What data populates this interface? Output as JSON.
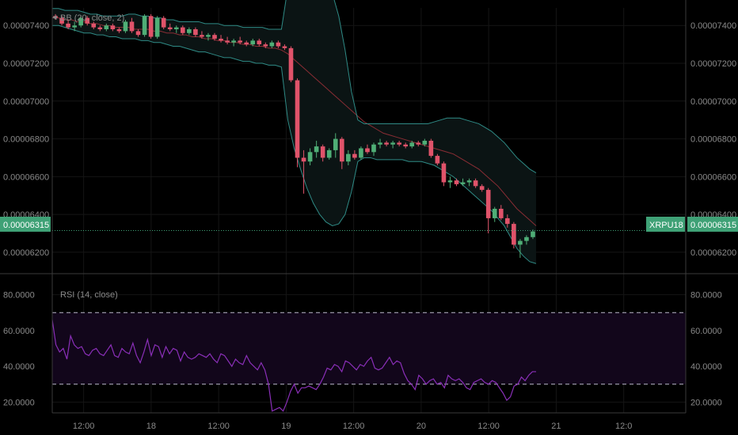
{
  "colors": {
    "background": "#000000",
    "grid": "#151515",
    "axis_line": "#3a3a3a",
    "label": "#8a8a8a",
    "up_candle": "#4fae76",
    "down_candle": "#e0536a",
    "bb_band": "#2f8b86",
    "bb_fill": "#0b1414",
    "bb_basis": "#8a2d34",
    "rsi_line": "#8a2fb8",
    "rsi_band_fill": "#12061b",
    "rsi_level": "#b9b9c9",
    "price_tag": "#3fa176",
    "price_line": "#3fa176"
  },
  "price_panel": {
    "indicator_label": "BB (20, close, 2)",
    "left_ticks": [
      "0.00007400",
      "0.00007200",
      "0.00007000",
      "0.00006800",
      "0.00006600",
      "0.00006400",
      "0.00006200"
    ],
    "right_ticks": [
      "0.00007400",
      "0.00007200",
      "0.00007000",
      "0.00006800",
      "0.00006600",
      "0.00006400",
      "0.00006200"
    ],
    "last_price_left": "0.00006315",
    "last_price_right": "0.00006315",
    "symbol_tag": "XRPU18"
  },
  "rsi_panel": {
    "indicator_label": "RSI (14, close)",
    "left_ticks": [
      "80.0000",
      "60.0000",
      "40.0000",
      "20.0000"
    ],
    "right_ticks": [
      "80.0000",
      "60.0000",
      "40.0000",
      "20.0000"
    ]
  },
  "time_axis": {
    "labels": [
      "12:00",
      "18",
      "12:00",
      "19",
      "12:00",
      "20",
      "12:00",
      "21",
      "12:0"
    ]
  },
  "chart_data": [
    {
      "type": "candlestick",
      "title": "BB (20, close, 2)",
      "ylim": [
        6.095e-05,
        7.493e-05
      ],
      "x_range_hours": [
        0,
        86
      ],
      "time_labels": {
        "6": "12:00",
        "18": "18",
        "30": "12:00",
        "42": "19",
        "54": "12:00",
        "66": "20",
        "78": "12:00",
        "90": "21",
        "102": "12:0"
      },
      "last_price": 6.315e-05,
      "candles": [
        [
          7.45e-05,
          7.46e-05,
          7.43e-05,
          7.44e-05
        ],
        [
          7.44e-05,
          7.45e-05,
          7.4e-05,
          7.41e-05
        ],
        [
          7.41e-05,
          7.43e-05,
          7.38e-05,
          7.39e-05
        ],
        [
          7.39e-05,
          7.42e-05,
          7.37e-05,
          7.4e-05
        ],
        [
          7.4e-05,
          7.45e-05,
          7.39e-05,
          7.44e-05
        ],
        [
          7.44e-05,
          7.45e-05,
          7.4e-05,
          7.41e-05
        ],
        [
          7.41e-05,
          7.42e-05,
          7.38e-05,
          7.39e-05
        ],
        [
          7.39e-05,
          7.4e-05,
          7.37e-05,
          7.38e-05
        ],
        [
          7.38e-05,
          7.41e-05,
          7.37e-05,
          7.4e-05
        ],
        [
          7.4e-05,
          7.41e-05,
          7.37e-05,
          7.38e-05
        ],
        [
          7.38e-05,
          7.39e-05,
          7.36e-05,
          7.37e-05
        ],
        [
          7.37e-05,
          7.43e-05,
          7.36e-05,
          7.42e-05
        ],
        [
          7.42e-05,
          7.44e-05,
          7.36e-05,
          7.37e-05
        ],
        [
          7.37e-05,
          7.38e-05,
          7.34e-05,
          7.35e-05
        ],
        [
          7.35e-05,
          7.46e-05,
          7.34e-05,
          7.45e-05
        ],
        [
          7.45e-05,
          7.46e-05,
          7.33e-05,
          7.34e-05
        ],
        [
          7.34e-05,
          7.45e-05,
          7.33e-05,
          7.44e-05
        ],
        [
          7.44e-05,
          7.45e-05,
          7.38e-05,
          7.39e-05
        ],
        [
          7.39e-05,
          7.41e-05,
          7.37e-05,
          7.38e-05
        ],
        [
          7.38e-05,
          7.4e-05,
          7.36e-05,
          7.39e-05
        ],
        [
          7.39e-05,
          7.4e-05,
          7.35e-05,
          7.36e-05
        ],
        [
          7.36e-05,
          7.39e-05,
          7.35e-05,
          7.38e-05
        ],
        [
          7.38e-05,
          7.39e-05,
          7.34e-05,
          7.35e-05
        ],
        [
          7.35e-05,
          7.37e-05,
          7.33e-05,
          7.34e-05
        ],
        [
          7.34e-05,
          7.36e-05,
          7.32e-05,
          7.35e-05
        ],
        [
          7.35e-05,
          7.36e-05,
          7.32e-05,
          7.33e-05
        ],
        [
          7.33e-05,
          7.35e-05,
          7.31e-05,
          7.32e-05
        ],
        [
          7.32e-05,
          7.34e-05,
          7.3e-05,
          7.31e-05
        ],
        [
          7.31e-05,
          7.33e-05,
          7.29e-05,
          7.32e-05
        ],
        [
          7.32e-05,
          7.34e-05,
          7.3e-05,
          7.31e-05
        ],
        [
          7.31e-05,
          7.32e-05,
          7.29e-05,
          7.3e-05
        ],
        [
          7.3e-05,
          7.33e-05,
          7.29e-05,
          7.32e-05
        ],
        [
          7.32e-05,
          7.33e-05,
          7.29e-05,
          7.3e-05
        ],
        [
          7.3e-05,
          7.31e-05,
          7.28e-05,
          7.29e-05
        ],
        [
          7.29e-05,
          7.32e-05,
          7.28e-05,
          7.31e-05
        ],
        [
          7.31e-05,
          7.32e-05,
          7.28e-05,
          7.29e-05
        ],
        [
          7.29e-05,
          7.3e-05,
          7.27e-05,
          7.28e-05
        ],
        [
          7.28e-05,
          7.29e-05,
          7.1e-05,
          7.11e-05
        ],
        [
          7.11e-05,
          7.12e-05,
          6.65e-05,
          6.7e-05
        ],
        [
          6.7e-05,
          6.74e-05,
          6.51e-05,
          6.68e-05
        ],
        [
          6.68e-05,
          6.75e-05,
          6.66e-05,
          6.73e-05
        ],
        [
          6.73e-05,
          6.79e-05,
          6.7e-05,
          6.76e-05
        ],
        [
          6.76e-05,
          6.77e-05,
          6.68e-05,
          6.7e-05
        ],
        [
          6.7e-05,
          6.75e-05,
          6.69e-05,
          6.74e-05
        ],
        [
          6.74e-05,
          6.83e-05,
          6.7e-05,
          6.8e-05
        ],
        [
          6.8e-05,
          6.81e-05,
          6.64e-05,
          6.68e-05
        ],
        [
          6.68e-05,
          6.74e-05,
          6.66e-05,
          6.72e-05
        ],
        [
          6.72e-05,
          6.74e-05,
          6.69e-05,
          6.7e-05
        ],
        [
          6.7e-05,
          6.76e-05,
          6.69e-05,
          6.75e-05
        ],
        [
          6.75e-05,
          6.77e-05,
          6.72e-05,
          6.73e-05
        ],
        [
          6.73e-05,
          6.78e-05,
          6.71e-05,
          6.77e-05
        ],
        [
          6.77e-05,
          6.8e-05,
          6.75e-05,
          6.78e-05
        ],
        [
          6.78e-05,
          6.79e-05,
          6.76e-05,
          6.77e-05
        ],
        [
          6.77e-05,
          6.79e-05,
          6.75e-05,
          6.78e-05
        ],
        [
          6.78e-05,
          6.79e-05,
          6.76e-05,
          6.77e-05
        ],
        [
          6.77e-05,
          6.78e-05,
          6.75e-05,
          6.76e-05
        ],
        [
          6.76e-05,
          6.79e-05,
          6.75e-05,
          6.78e-05
        ],
        [
          6.78e-05,
          6.79e-05,
          6.76e-05,
          6.77e-05
        ],
        [
          6.77e-05,
          6.8e-05,
          6.76e-05,
          6.79e-05
        ],
        [
          6.79e-05,
          6.8e-05,
          6.7e-05,
          6.71e-05
        ],
        [
          6.71e-05,
          6.72e-05,
          6.66e-05,
          6.67e-05
        ],
        [
          6.67e-05,
          6.68e-05,
          6.55e-05,
          6.57e-05
        ],
        [
          6.57e-05,
          6.6e-05,
          6.54e-05,
          6.58e-05
        ],
        [
          6.58e-05,
          6.59e-05,
          6.55e-05,
          6.56e-05
        ],
        [
          6.56e-05,
          6.59e-05,
          6.55e-05,
          6.57e-05
        ],
        [
          6.57e-05,
          6.59e-05,
          6.55e-05,
          6.58e-05
        ],
        [
          6.58e-05,
          6.59e-05,
          6.54e-05,
          6.55e-05
        ],
        [
          6.55e-05,
          6.56e-05,
          6.52e-05,
          6.53e-05
        ],
        [
          6.53e-05,
          6.54e-05,
          6.3e-05,
          6.38e-05
        ],
        [
          6.38e-05,
          6.44e-05,
          6.36e-05,
          6.43e-05
        ],
        [
          6.43e-05,
          6.45e-05,
          6.37e-05,
          6.38e-05
        ],
        [
          6.38e-05,
          6.4e-05,
          6.33e-05,
          6.35e-05
        ],
        [
          6.35e-05,
          6.36e-05,
          6.22e-05,
          6.24e-05
        ],
        [
          6.24e-05,
          6.27e-05,
          6.17e-05,
          6.26e-05
        ],
        [
          6.26e-05,
          6.29e-05,
          6.24e-05,
          6.28e-05
        ],
        [
          6.28e-05,
          6.32e-05,
          6.27e-05,
          6.31e-05
        ]
      ],
      "bands": {
        "upper": [
          7.49e-05,
          7.49e-05,
          7.48e-05,
          7.48e-05,
          7.48e-05,
          7.47e-05,
          7.46e-05,
          7.46e-05,
          7.45e-05,
          7.45e-05,
          7.45e-05,
          7.45e-05,
          7.46e-05,
          7.46e-05,
          7.45e-05,
          7.45e-05,
          7.44e-05,
          7.44e-05,
          7.43e-05,
          7.43e-05,
          7.42e-05,
          7.42e-05,
          7.42e-05,
          7.42e-05,
          7.41e-05,
          7.41e-05,
          7.41e-05,
          7.4e-05,
          7.4e-05,
          7.4e-05,
          7.39e-05,
          7.39e-05,
          7.39e-05,
          7.39e-05,
          7.38e-05,
          7.38e-05,
          7.38e-05,
          7.6e-05,
          7.72e-05,
          7.74e-05,
          7.74e-05,
          7.73e-05,
          7.7e-05,
          7.65e-05,
          7.57e-05,
          7.45e-05,
          7.27e-05,
          7.05e-05,
          6.9e-05,
          6.88e-05,
          6.88e-05,
          6.88e-05,
          6.88e-05,
          6.88e-05,
          6.88e-05,
          6.88e-05,
          6.88e-05,
          6.88e-05,
          6.88e-05,
          6.88e-05,
          6.89e-05,
          6.9e-05,
          6.91e-05,
          6.91e-05,
          6.91e-05,
          6.9e-05,
          6.89e-05,
          6.88e-05,
          6.86e-05,
          6.84e-05,
          6.81e-05,
          6.78e-05,
          6.74e-05,
          6.7e-05,
          6.67e-05,
          6.64e-05,
          6.62e-05
        ],
        "basis": [
          7.44e-05,
          7.44e-05,
          7.43e-05,
          7.43e-05,
          7.42e-05,
          7.42e-05,
          7.41e-05,
          7.41e-05,
          7.4e-05,
          7.4e-05,
          7.39e-05,
          7.39e-05,
          7.39e-05,
          7.38e-05,
          7.38e-05,
          7.38e-05,
          7.37e-05,
          7.37e-05,
          7.36e-05,
          7.36e-05,
          7.35e-05,
          7.35e-05,
          7.34e-05,
          7.34e-05,
          7.33e-05,
          7.33e-05,
          7.32e-05,
          7.32e-05,
          7.31e-05,
          7.31e-05,
          7.3e-05,
          7.3e-05,
          7.29e-05,
          7.29e-05,
          7.28e-05,
          7.28e-05,
          7.27e-05,
          7.25e-05,
          7.22e-05,
          7.19e-05,
          7.16e-05,
          7.13e-05,
          7.1e-05,
          7.07e-05,
          7.04e-05,
          7.01e-05,
          6.98e-05,
          6.95e-05,
          6.92e-05,
          6.89e-05,
          6.87e-05,
          6.85e-05,
          6.83e-05,
          6.82e-05,
          6.81e-05,
          6.8e-05,
          6.79e-05,
          6.78e-05,
          6.77e-05,
          6.76e-05,
          6.75e-05,
          6.74e-05,
          6.73e-05,
          6.72e-05,
          6.7e-05,
          6.68e-05,
          6.66e-05,
          6.64e-05,
          6.61e-05,
          6.58e-05,
          6.55e-05,
          6.51e-05,
          6.47e-05,
          6.43e-05,
          6.4e-05,
          6.37e-05,
          6.34e-05
        ],
        "lower": [
          7.4e-05,
          7.4e-05,
          7.39e-05,
          7.38e-05,
          7.37e-05,
          7.36e-05,
          7.36e-05,
          7.35e-05,
          7.35e-05,
          7.34e-05,
          7.34e-05,
          7.33e-05,
          7.33e-05,
          7.33e-05,
          7.32e-05,
          7.32e-05,
          7.31e-05,
          7.31e-05,
          7.3e-05,
          7.29e-05,
          7.29e-05,
          7.28e-05,
          7.27e-05,
          7.26e-05,
          7.26e-05,
          7.25e-05,
          7.24e-05,
          7.23e-05,
          7.23e-05,
          7.22e-05,
          7.21e-05,
          7.21e-05,
          7.2e-05,
          7.2e-05,
          7.19e-05,
          7.19e-05,
          7.18e-05,
          6.9e-05,
          6.75e-05,
          6.64e-05,
          6.54e-05,
          6.46e-05,
          6.4e-05,
          6.36e-05,
          6.34e-05,
          6.35e-05,
          6.4e-05,
          6.52e-05,
          6.68e-05,
          6.7e-05,
          6.7e-05,
          6.69e-05,
          6.69e-05,
          6.69e-05,
          6.69e-05,
          6.69e-05,
          6.68e-05,
          6.68e-05,
          6.68e-05,
          6.67e-05,
          6.66e-05,
          6.64e-05,
          6.62e-05,
          6.6e-05,
          6.57e-05,
          6.54e-05,
          6.51e-05,
          6.48e-05,
          6.45e-05,
          6.42e-05,
          6.38e-05,
          6.34e-05,
          6.28e-05,
          6.22e-05,
          6.18e-05,
          6.15e-05,
          6.14e-05
        ]
      }
    },
    {
      "type": "line",
      "title": "RSI (14, close)",
      "ylim": [
        14,
        90
      ],
      "levels": [
        70,
        30
      ],
      "x_range_hours": [
        0,
        86
      ],
      "values": [
        66,
        52,
        48,
        50,
        44,
        57,
        52,
        50,
        51,
        47,
        46,
        49,
        50,
        47,
        46,
        49,
        52,
        46,
        45,
        50,
        48,
        47,
        53,
        46,
        42,
        48,
        55,
        46,
        52,
        51,
        45,
        51,
        47,
        50,
        49,
        43,
        48,
        45,
        44,
        45,
        47,
        46,
        45,
        47,
        44,
        42,
        47,
        46,
        43,
        40,
        44,
        42,
        41,
        46,
        42,
        40,
        38,
        42,
        38,
        30,
        15,
        16,
        17,
        15,
        20,
        26,
        30,
        25,
        28,
        28,
        29,
        28,
        27,
        30,
        34,
        39,
        38,
        41,
        40,
        37,
        43,
        42,
        40,
        38,
        41,
        40,
        43,
        45,
        39,
        38,
        39,
        42,
        45,
        41,
        43,
        42,
        36,
        32,
        30,
        27,
        35,
        33,
        30,
        32,
        33,
        30,
        31,
        28,
        35,
        33,
        32,
        33,
        31,
        28,
        27,
        31,
        32,
        33,
        31,
        30,
        32,
        31,
        28,
        25,
        21,
        23,
        29,
        30,
        34,
        32,
        35,
        37,
        37
      ]
    }
  ]
}
